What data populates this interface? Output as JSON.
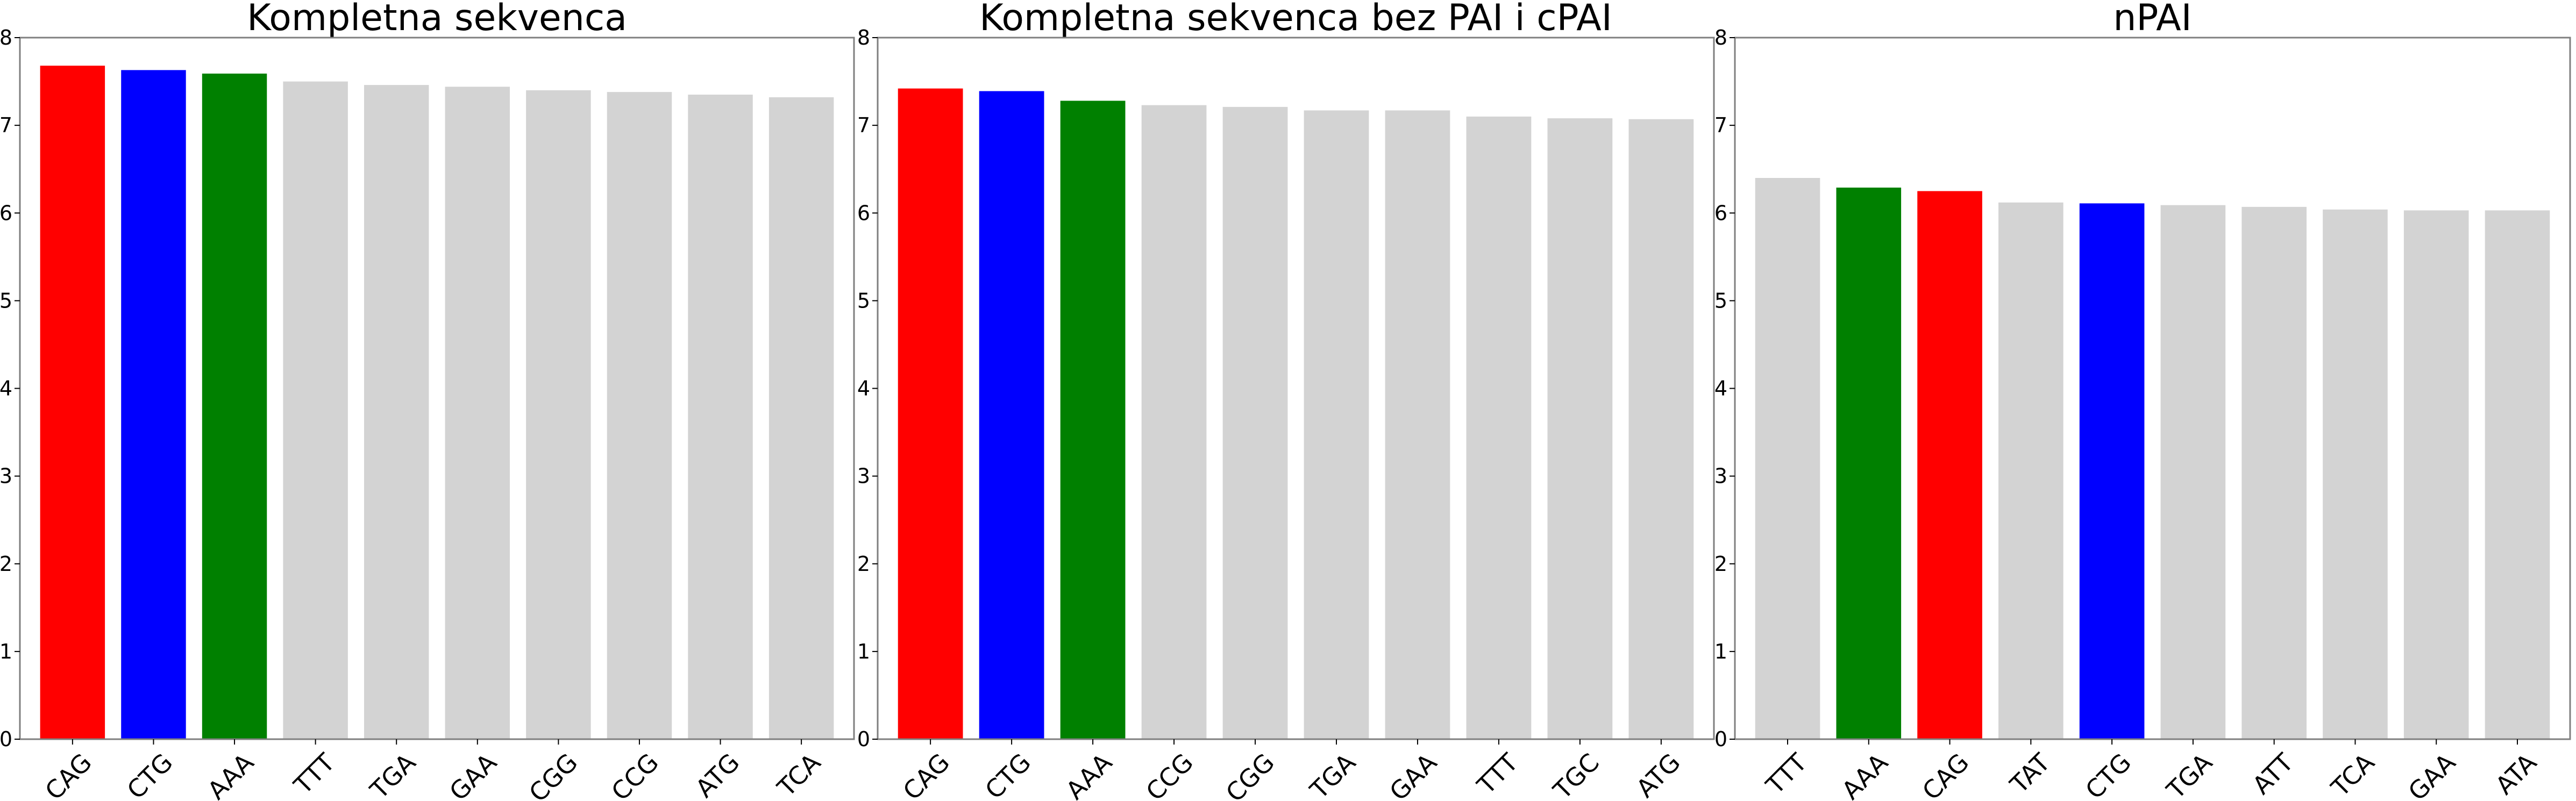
{
  "chart_data": [
    {
      "type": "bar",
      "title": "Kompletna sekvenca",
      "xlabel": "",
      "ylabel": "",
      "ylim": [
        0,
        8
      ],
      "yticks": [
        0,
        1,
        2,
        3,
        4,
        5,
        6,
        7,
        8
      ],
      "grid": false,
      "categories": [
        "CAG",
        "CTG",
        "AAA",
        "TTT",
        "TGA",
        "GAA",
        "CGG",
        "CCG",
        "ATG",
        "TCA"
      ],
      "values": [
        7.68,
        7.63,
        7.59,
        7.5,
        7.46,
        7.44,
        7.4,
        7.38,
        7.35,
        7.32
      ],
      "colors": [
        "#ff0000",
        "#0000ff",
        "#008000",
        "#d3d3d3",
        "#d3d3d3",
        "#d3d3d3",
        "#d3d3d3",
        "#d3d3d3",
        "#d3d3d3",
        "#d3d3d3"
      ]
    },
    {
      "type": "bar",
      "title": "Kompletna sekvenca bez PAI i cPAI",
      "xlabel": "",
      "ylabel": "",
      "ylim": [
        0,
        8
      ],
      "yticks": [
        0,
        1,
        2,
        3,
        4,
        5,
        6,
        7,
        8
      ],
      "grid": false,
      "categories": [
        "CAG",
        "CTG",
        "AAA",
        "CCG",
        "CGG",
        "TGA",
        "GAA",
        "TTT",
        "TGC",
        "ATG"
      ],
      "values": [
        7.42,
        7.39,
        7.28,
        7.23,
        7.21,
        7.17,
        7.17,
        7.1,
        7.08,
        7.07
      ],
      "colors": [
        "#ff0000",
        "#0000ff",
        "#008000",
        "#d3d3d3",
        "#d3d3d3",
        "#d3d3d3",
        "#d3d3d3",
        "#d3d3d3",
        "#d3d3d3",
        "#d3d3d3"
      ]
    },
    {
      "type": "bar",
      "title": "nPAI",
      "xlabel": "",
      "ylabel": "",
      "ylim": [
        0,
        8
      ],
      "yticks": [
        0,
        1,
        2,
        3,
        4,
        5,
        6,
        7,
        8
      ],
      "grid": false,
      "categories": [
        "TTT",
        "AAA",
        "CAG",
        "TAT",
        "CTG",
        "TGA",
        "ATT",
        "TCA",
        "GAA",
        "ATA"
      ],
      "values": [
        6.4,
        6.29,
        6.25,
        6.12,
        6.11,
        6.09,
        6.07,
        6.04,
        6.03,
        6.03
      ],
      "colors": [
        "#d3d3d3",
        "#008000",
        "#ff0000",
        "#d3d3d3",
        "#0000ff",
        "#d3d3d3",
        "#d3d3d3",
        "#d3d3d3",
        "#d3d3d3",
        "#d3d3d3"
      ]
    }
  ]
}
